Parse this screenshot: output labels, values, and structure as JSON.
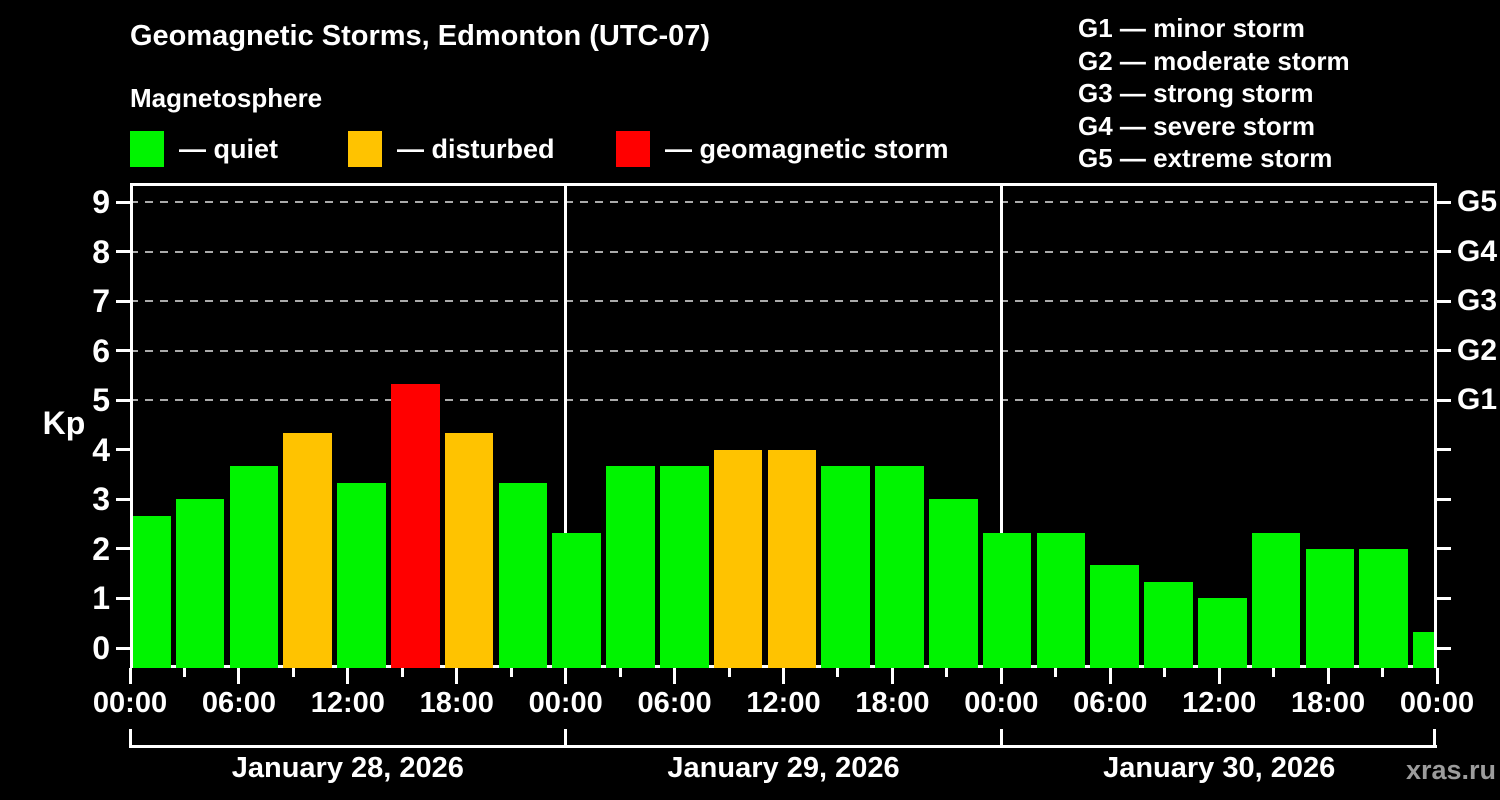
{
  "header": {
    "title": "Geomagnetic Storms, Edmonton (UTC-07)",
    "subtitle": "Magnetosphere",
    "watermark": "xras.ru"
  },
  "legend": {
    "items": [
      {
        "key": "quiet",
        "label": "— quiet",
        "color": "#00f400"
      },
      {
        "key": "disturbed",
        "label": "— disturbed",
        "color": "#ffc300"
      },
      {
        "key": "storm",
        "label": "— geomagnetic storm",
        "color": "#ff0000"
      }
    ]
  },
  "g_legend": {
    "items": [
      "G1 — minor storm",
      "G2 — moderate storm",
      "G3 — strong storm",
      "G4 — severe storm",
      "G5 — extreme storm"
    ]
  },
  "chart_data": {
    "type": "bar",
    "title": "Geomagnetic Storms, Edmonton (UTC-07)",
    "subtitle": "Magnetosphere",
    "ylabel": "Kp",
    "ylim": [
      -0.4,
      9.4
    ],
    "y_ticks": [
      0,
      1,
      2,
      3,
      4,
      5,
      6,
      7,
      8,
      9
    ],
    "dashed_gridlines_at": [
      5,
      6,
      7,
      8,
      9
    ],
    "right_axis": [
      {
        "kp": 5,
        "label": "G1"
      },
      {
        "kp": 6,
        "label": "G2"
      },
      {
        "kp": 7,
        "label": "G3"
      },
      {
        "kp": 8,
        "label": "G4"
      },
      {
        "kp": 9,
        "label": "G5"
      }
    ],
    "x_axis": {
      "total_hours": 72,
      "major_tick_labels": [
        {
          "hour": 0,
          "label": "00:00"
        },
        {
          "hour": 6,
          "label": "06:00"
        },
        {
          "hour": 12,
          "label": "12:00"
        },
        {
          "hour": 18,
          "label": "18:00"
        },
        {
          "hour": 24,
          "label": "00:00"
        },
        {
          "hour": 30,
          "label": "06:00"
        },
        {
          "hour": 36,
          "label": "12:00"
        },
        {
          "hour": 42,
          "label": "18:00"
        },
        {
          "hour": 48,
          "label": "00:00"
        },
        {
          "hour": 54,
          "label": "06:00"
        },
        {
          "hour": 60,
          "label": "12:00"
        },
        {
          "hour": 66,
          "label": "18:00"
        },
        {
          "hour": 72,
          "label": "00:00"
        }
      ]
    },
    "day_labels": [
      "January 28, 2026",
      "January 29, 2026",
      "January 30, 2026"
    ],
    "status_colors": {
      "quiet": "#00f400",
      "disturbed": "#ffc300",
      "storm": "#ff0000"
    },
    "bars": [
      {
        "hour": 0,
        "kp": 2.67,
        "status": "quiet"
      },
      {
        "hour": 3,
        "kp": 3.0,
        "status": "quiet"
      },
      {
        "hour": 6,
        "kp": 3.67,
        "status": "quiet"
      },
      {
        "hour": 9,
        "kp": 4.33,
        "status": "disturbed"
      },
      {
        "hour": 12,
        "kp": 3.33,
        "status": "quiet"
      },
      {
        "hour": 15,
        "kp": 5.33,
        "status": "storm"
      },
      {
        "hour": 18,
        "kp": 4.33,
        "status": "disturbed"
      },
      {
        "hour": 21,
        "kp": 3.33,
        "status": "quiet"
      },
      {
        "hour": 24,
        "kp": 2.33,
        "status": "quiet"
      },
      {
        "hour": 27,
        "kp": 3.67,
        "status": "quiet"
      },
      {
        "hour": 30,
        "kp": 3.67,
        "status": "quiet"
      },
      {
        "hour": 33,
        "kp": 4.0,
        "status": "disturbed"
      },
      {
        "hour": 36,
        "kp": 4.0,
        "status": "disturbed"
      },
      {
        "hour": 39,
        "kp": 3.67,
        "status": "quiet"
      },
      {
        "hour": 42,
        "kp": 3.67,
        "status": "quiet"
      },
      {
        "hour": 45,
        "kp": 3.0,
        "status": "quiet"
      },
      {
        "hour": 48,
        "kp": 2.33,
        "status": "quiet"
      },
      {
        "hour": 51,
        "kp": 2.33,
        "status": "quiet"
      },
      {
        "hour": 54,
        "kp": 1.67,
        "status": "quiet"
      },
      {
        "hour": 57,
        "kp": 1.33,
        "status": "quiet"
      },
      {
        "hour": 60,
        "kp": 1.0,
        "status": "quiet"
      },
      {
        "hour": 63,
        "kp": 2.33,
        "status": "quiet"
      },
      {
        "hour": 66,
        "kp": 2.0,
        "status": "quiet"
      },
      {
        "hour": 69,
        "kp": 2.0,
        "status": "quiet"
      },
      {
        "hour": 72,
        "kp": 0.33,
        "status": "quiet",
        "partial": true
      }
    ]
  }
}
